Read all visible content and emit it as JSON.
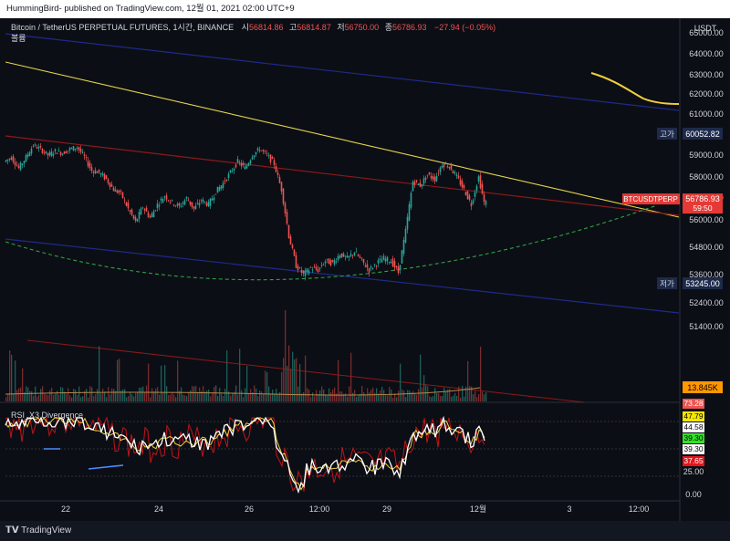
{
  "header": {
    "publish_line": "HummingBird- published on TradingView.com, 12월 01, 2021 02:00 UTC+9"
  },
  "legend": {
    "symbol": "Bitcoin / TetherUS PERPETUAL FUTURES, 1시간, BINANCE",
    "open_label": "시",
    "open": "56814.86",
    "high_label": "고",
    "high": "56814.87",
    "low_label": "저",
    "low": "56750.00",
    "close_label": "종",
    "close": "56786.93",
    "change": "−27.94 (−0.05%)",
    "volume_label": "볼륨"
  },
  "rsi_panel": {
    "title": "RSI_X3 Divergence"
  },
  "footer": {
    "brand": "TradingView"
  },
  "colors": {
    "background": "#0c0e15",
    "up": "#26a69a",
    "down": "#ef5350",
    "trend_yellow": "#e6d44a",
    "trend_red": "#8b1a1a",
    "trend_blue": "#1e2a8a",
    "arc_green": "#2ea043",
    "ma_yellow": "#f0d03c"
  },
  "chart_data": [
    {
      "type": "candlestick",
      "title": "Bitcoin / TetherUS PERPETUAL FUTURES, 1시간, BINANCE",
      "y_axis_label": "USDT",
      "ylim": [
        51400,
        65500
      ],
      "y_ticks": [
        "65000.00",
        "64000.00",
        "63000.00",
        "62000.00",
        "61000.00",
        "59000.00",
        "58000.00",
        "57000.00",
        "56000.00",
        "54800.00",
        "53600.00",
        "52400.00",
        "51400.00"
      ],
      "x_ticks": [
        "22",
        "24",
        "26",
        "12:00",
        "29",
        "12월",
        "3",
        "12:00"
      ],
      "price_markers": [
        {
          "label": "고가",
          "value": "60052.82",
          "price": 60052.82,
          "style": "dark"
        },
        {
          "label": "BTCUSDTPERP",
          "value": "56786.93",
          "extra": "59:50",
          "price": 56786.93,
          "style": "red"
        },
        {
          "label": "저가",
          "value": "53245.00",
          "price": 53245.0,
          "style": "dark"
        }
      ],
      "series": [
        {
          "name": "BTCUSDTPERP",
          "values_path": [
            [
              0,
              58700
            ],
            [
              8,
              58900
            ],
            [
              16,
              58400
            ],
            [
              24,
              58900
            ],
            [
              32,
              59500
            ],
            [
              40,
              59300
            ],
            [
              48,
              59000
            ],
            [
              56,
              59200
            ],
            [
              64,
              59100
            ],
            [
              72,
              59300
            ],
            [
              80,
              59400
            ],
            [
              88,
              58900
            ],
            [
              96,
              58300
            ],
            [
              104,
              58200
            ],
            [
              112,
              57900
            ],
            [
              120,
              57400
            ],
            [
              128,
              57200
            ],
            [
              136,
              56500
            ],
            [
              144,
              55900
            ],
            [
              152,
              56600
            ],
            [
              160,
              56100
            ],
            [
              168,
              56700
            ],
            [
              176,
              57100
            ],
            [
              184,
              56800
            ],
            [
              192,
              56600
            ],
            [
              200,
              57000
            ],
            [
              208,
              56500
            ],
            [
              216,
              56900
            ],
            [
              224,
              56700
            ],
            [
              232,
              57300
            ],
            [
              240,
              57700
            ],
            [
              248,
              58200
            ],
            [
              256,
              58700
            ],
            [
              264,
              58400
            ],
            [
              272,
              59000
            ],
            [
              280,
              59300
            ],
            [
              288,
              59000
            ],
            [
              296,
              58600
            ],
            [
              304,
              57400
            ],
            [
              312,
              55300
            ],
            [
              320,
              54000
            ],
            [
              328,
              53600
            ],
            [
              336,
              53900
            ],
            [
              344,
              53800
            ],
            [
              352,
              54200
            ],
            [
              360,
              54100
            ],
            [
              368,
              54500
            ],
            [
              376,
              54300
            ],
            [
              384,
              54600
            ],
            [
              392,
              54200
            ],
            [
              400,
              53800
            ],
            [
              408,
              54100
            ],
            [
              416,
              54300
            ],
            [
              424,
              54200
            ],
            [
              432,
              53700
            ],
            [
              440,
              55500
            ],
            [
              448,
              57800
            ],
            [
              456,
              57600
            ],
            [
              464,
              58100
            ],
            [
              472,
              57900
            ],
            [
              480,
              58600
            ],
            [
              488,
              58500
            ],
            [
              496,
              58000
            ],
            [
              504,
              57400
            ],
            [
              512,
              56700
            ],
            [
              520,
              58000
            ],
            [
              526,
              56787
            ]
          ]
        }
      ]
    },
    {
      "type": "bar",
      "title": "볼륨",
      "last_value_label": "13.845K",
      "note": "hourly volume bars"
    },
    {
      "type": "line",
      "title": "RSI_X3 Divergence",
      "ylim": [
        0,
        80
      ],
      "y_ticks": [
        "25.00",
        "0.00"
      ],
      "value_labels": [
        {
          "value": "73.28",
          "bg": "#ef5350",
          "fg": "#ffffff"
        },
        {
          "value": "47.79",
          "bg": "#f7e600",
          "fg": "#000000"
        },
        {
          "value": "44.58",
          "bg": "#ffffff",
          "fg": "#000000"
        },
        {
          "value": "39.30",
          "bg": "#35e02a",
          "fg": "#000000"
        },
        {
          "value": "39.30",
          "bg": "#ffffff",
          "fg": "#000000"
        },
        {
          "value": "37.65",
          "bg": "#e5151a",
          "fg": "#ffffff"
        }
      ]
    }
  ]
}
